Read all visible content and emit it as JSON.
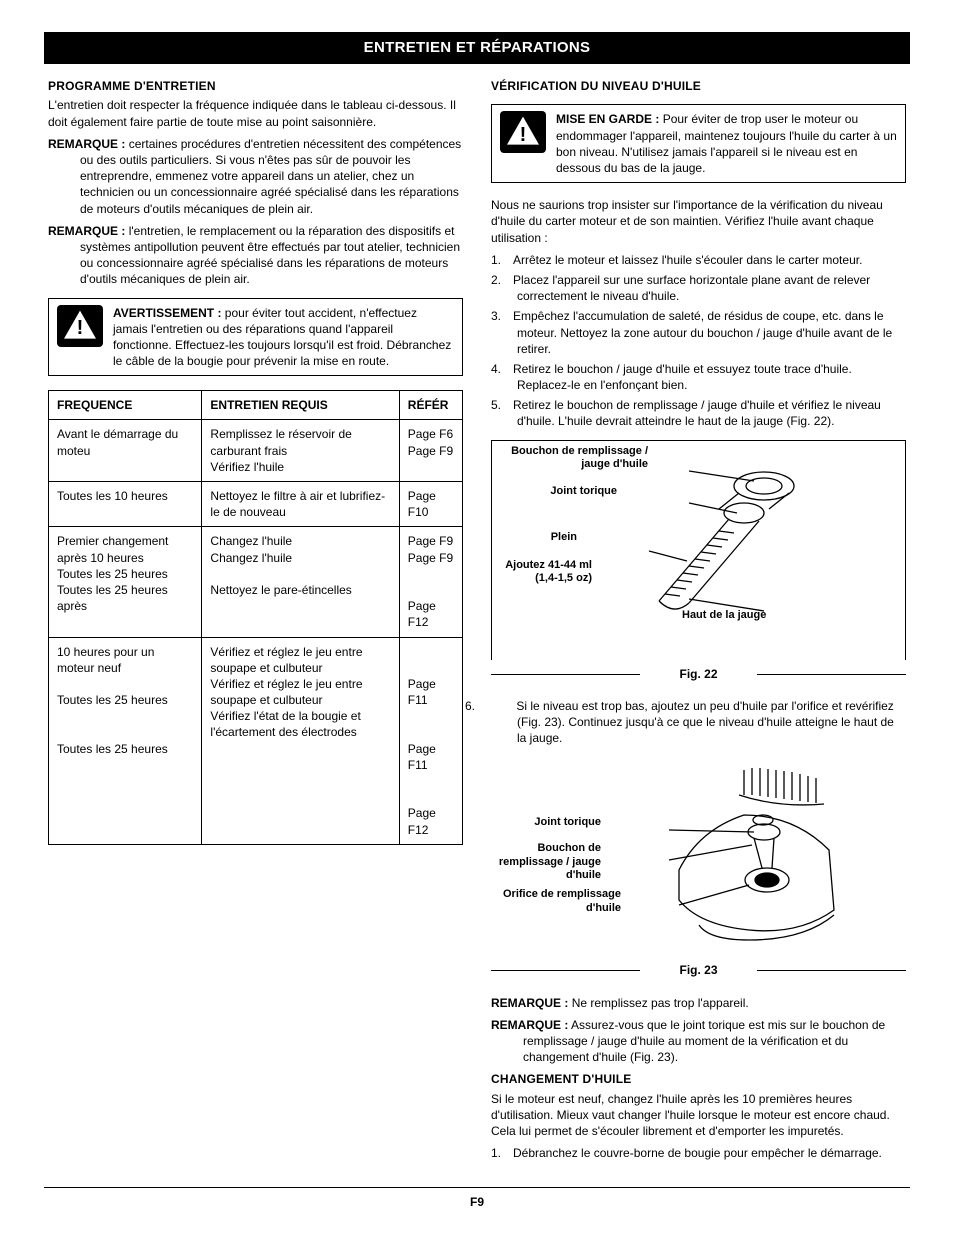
{
  "banner": "ENTRETIEN ET RÉPARATIONS",
  "pageNumber": "F9",
  "left": {
    "h1": "PROGRAMME D'ENTRETIEN",
    "intro": "L'entretien doit respecter la fréquence indiquée dans le tableau ci-dessous. Il doit également faire partie de toute mise au point saisonnière.",
    "remark1Label": "REMARQUE :",
    "remark1": "certaines procédures d'entretien nécessitent des compétences ou des outils particuliers. Si vous n'êtes pas sûr de pouvoir les entreprendre, emmenez votre appareil dans un atelier, chez un technicien ou un concessionnaire agréé spécialisé dans les réparations de moteurs d'outils mécaniques de plein air.",
    "remark2Label": "REMARQUE :",
    "remark2": "l'entretien, le remplacement ou la réparation des dispositifs et systèmes antipollution peuvent être effectués par tout atelier, technicien ou concessionnaire agréé spécialisé dans les réparations de moteurs d'outils mécaniques de plein air.",
    "warnLabel": "AVERTISSEMENT :",
    "warnText": "pour éviter tout accident, n'effectuez jamais l'entretien ou des réparations quand l'appareil fonctionne. Effectuez-les toujours lorsqu'il est froid. Débranchez le câble de la bougie pour prévenir la mise en route.",
    "table": {
      "headers": [
        "FREQUENCE",
        "ENTRETIEN REQUIS",
        "RÉFÉR"
      ],
      "rows": [
        {
          "freq": "Avant le démarrage du moteu",
          "req": "Remplissez le réservoir de carburant frais\nVérifiez l'huile",
          "ref": "Page F6\nPage F9"
        },
        {
          "freq": "Toutes les 10 heures",
          "req": "Nettoyez le filtre à air et lubrifiez-le de nouveau",
          "ref": "Page F10"
        },
        {
          "freq": "Premier changement après 10 heures\nToutes les 25 heures\nToutes les 25 heures après",
          "req": "Changez l'huile\nChangez l'huile\n\nNettoyez le pare-étincelles",
          "ref": "Page F9\nPage F9\n\n\nPage F12"
        },
        {
          "freq": "10 heures pour un moteur neuf\n\nToutes les 25 heures\n\n\nToutes les 25 heures",
          "req": "Vérifiez et réglez le jeu entre soupape et culbuteur\nVérifiez et réglez le jeu entre soupape et culbuteur\nVérifiez l'état de la bougie et l'écartement des électrodes",
          "ref": "\n\nPage F11\n\n\nPage F11\n\n\nPage F12"
        }
      ]
    }
  },
  "right": {
    "h1": "VÉRIFICATION DU NIVEAU D'HUILE",
    "cautionLabel": "MISE EN GARDE :",
    "cautionText": "Pour éviter de trop user le moteur ou endommager l'appareil, maintenez toujours l'huile du carter à un bon niveau. N'utilisez jamais l'appareil si le niveau est en dessous du bas de la jauge.",
    "para1": "Nous ne saurions trop insister sur l'importance de la vérification du niveau d'huile du carter moteur et de son maintien. Vérifiez l'huile avant chaque utilisation :",
    "steps1": [
      "Arrêtez le moteur et laissez l'huile s'écouler dans le carter moteur.",
      "Placez l'appareil sur une surface horizontale plane avant de relever correctement le niveau d'huile.",
      "Empêchez l'accumulation de saleté, de résidus de coupe, etc. dans le moteur. Nettoyez la zone autour du bouchon / jauge d'huile avant de le retirer.",
      "Retirez le bouchon / jauge d'huile et essuyez toute trace d'huile. Replacez-le en l'enfonçant bien.",
      "Retirez le bouchon de remplissage / jauge d'huile et vérifiez le niveau d'huile. L'huile devrait atteindre le haut de la jauge (Fig. 22)."
    ],
    "fig22": {
      "caption": "Fig. 22",
      "labels": {
        "fillcap": "Bouchon de remplissage / jauge d'huile",
        "oring": "Joint torique",
        "full": "Plein",
        "add": "Ajoutez 41-44 ml (1,4-1,5 oz)",
        "top": "Haut de la jauge"
      }
    },
    "step6n": "6.",
    "step6": "Si le niveau est trop bas, ajoutez un peu d'huile par l'orifice et revérifiez (Fig. 23). Continuez jusqu'à ce que le niveau d'huile atteigne le haut de la jauge.",
    "fig23": {
      "caption": "Fig. 23",
      "labels": {
        "oring": "Joint torique",
        "fillcap": "Bouchon de remplissage / jauge d'huile",
        "hole": "Orifice de remplissage d'huile"
      }
    },
    "remark3Label": "REMARQUE :",
    "remark3": "Ne remplissez pas trop l'appareil.",
    "remark4Label": "REMARQUE :",
    "remark4": "Assurez-vous que le joint torique est mis sur le bouchon de remplissage / jauge d'huile au moment de la vérification et du changement d'huile (Fig. 23).",
    "h2": "CHANGEMENT D'HUILE",
    "para2": "Si le moteur est neuf, changez l'huile après les 10 premières heures d'utilisation. Mieux vaut changer l'huile lorsque le moteur est encore chaud. Cela lui permet de s'écouler librement et d'emporter les impuretés.",
    "steps2": [
      "Débranchez le couvre-borne de bougie pour empêcher le démarrage."
    ]
  }
}
